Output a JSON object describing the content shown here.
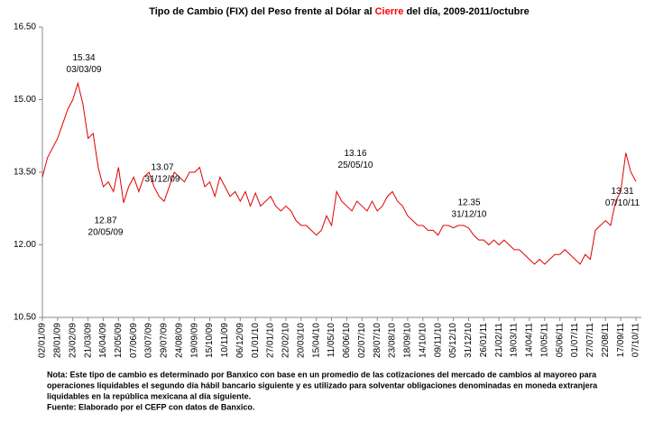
{
  "chart_data": {
    "type": "line",
    "title": [
      "Tipo de Cambio (FIX) del Peso frente al Dólar al ",
      "Cierre",
      " del día, 2009-2011/octubre"
    ],
    "title_colors": [
      "#000000",
      "#ff0000",
      "#000000"
    ],
    "categories": [
      "02/01/09",
      null,
      null,
      "28/01/09",
      null,
      null,
      "23/02/09",
      null,
      null,
      "21/03/09",
      null,
      null,
      "16/04/09",
      null,
      null,
      "12/05/09",
      null,
      null,
      "07/06/09",
      null,
      null,
      "03/07/09",
      null,
      null,
      "29/07/09",
      null,
      null,
      "24/08/09",
      null,
      null,
      "19/09/09",
      null,
      null,
      "15/10/09",
      null,
      null,
      "10/11/09",
      null,
      null,
      "06/12/09",
      null,
      null,
      "01/01/10",
      null,
      null,
      "27/01/10",
      null,
      null,
      "22/02/10",
      null,
      null,
      "20/03/10",
      null,
      null,
      "15/04/10",
      null,
      null,
      "11/05/10",
      null,
      null,
      "06/06/10",
      null,
      null,
      "02/07/10",
      null,
      null,
      "28/07/10",
      null,
      null,
      "23/08/10",
      null,
      null,
      "18/09/10",
      null,
      null,
      "14/10/10",
      null,
      null,
      "09/11/10",
      null,
      null,
      "05/12/10",
      null,
      null,
      "31/12/10",
      null,
      null,
      "26/01/11",
      null,
      null,
      "21/02/11",
      null,
      null,
      "19/03/11",
      null,
      null,
      "14/04/11",
      null,
      null,
      "10/05/11",
      null,
      null,
      "05/06/11",
      null,
      null,
      "01/07/11",
      null,
      null,
      "27/07/11",
      null,
      null,
      "22/08/11",
      null,
      null,
      "17/09/11",
      null,
      null,
      "07/10/11"
    ],
    "series": [
      {
        "color": "#e00000",
        "values": [
          13.4,
          13.8,
          14.0,
          14.2,
          14.5,
          14.8,
          15.0,
          15.34,
          14.9,
          14.2,
          14.3,
          13.6,
          13.2,
          13.3,
          13.1,
          13.6,
          12.87,
          13.2,
          13.4,
          13.1,
          13.4,
          13.5,
          13.2,
          13.0,
          12.9,
          13.2,
          13.5,
          13.4,
          13.3,
          13.5,
          13.5,
          13.6,
          13.2,
          13.3,
          13.0,
          13.4,
          13.2,
          13.0,
          13.1,
          12.9,
          13.1,
          12.8,
          13.07,
          12.8,
          12.9,
          13.0,
          12.8,
          12.7,
          12.8,
          12.7,
          12.5,
          12.4,
          12.4,
          12.3,
          12.2,
          12.3,
          12.6,
          12.4,
          13.1,
          12.9,
          12.8,
          12.7,
          12.9,
          12.8,
          12.7,
          12.9,
          12.7,
          12.8,
          13.0,
          13.1,
          12.9,
          12.8,
          12.6,
          12.5,
          12.4,
          12.4,
          12.3,
          12.3,
          12.2,
          12.4,
          12.4,
          12.35,
          12.4,
          12.4,
          12.35,
          12.2,
          12.1,
          12.1,
          12.0,
          12.1,
          12.0,
          12.1,
          12.0,
          11.9,
          11.9,
          11.8,
          11.7,
          11.6,
          11.7,
          11.6,
          11.7,
          11.8,
          11.8,
          11.9,
          11.8,
          11.7,
          11.6,
          11.8,
          11.7,
          12.3,
          12.4,
          12.5,
          12.4,
          12.9,
          13.1,
          13.9,
          13.5,
          13.31
        ]
      }
    ],
    "ylim": [
      10.5,
      16.5
    ],
    "yticks": [
      {
        "value": 10.5,
        "label": "10.50"
      },
      {
        "value": 12,
        "label": "12.00"
      },
      {
        "value": 13.5,
        "label": "13.50"
      },
      {
        "value": 15,
        "label": "15.00"
      },
      {
        "value": 16.5,
        "label": "16.50"
      }
    ],
    "annotations": [
      {
        "value": 15.34,
        "date": "03/03/09"
      },
      {
        "value": 12.87,
        "date": "20/05/09"
      },
      {
        "value": 13.07,
        "date": "31/12/09"
      },
      {
        "value": 13.16,
        "date": "25/05/10"
      },
      {
        "value": 12.35,
        "date": "31/12/10"
      },
      {
        "value": 13.31,
        "date": "07/10/11"
      }
    ],
    "notes": [
      "Nota: Este tipo de cambio es determinado por Banxico con base en un promedio de las cotizaciones del mercado de cambios al mayoreo para",
      "operaciones liquidables el segundo día hábil bancario siguiente y es utilizado  para solventar obligaciones denominadas en moneda extranjera",
      "liquidables en la república mexicana al día siguiente.",
      "Fuente: Elaborado por el CEFP con datos de Banxico."
    ]
  }
}
